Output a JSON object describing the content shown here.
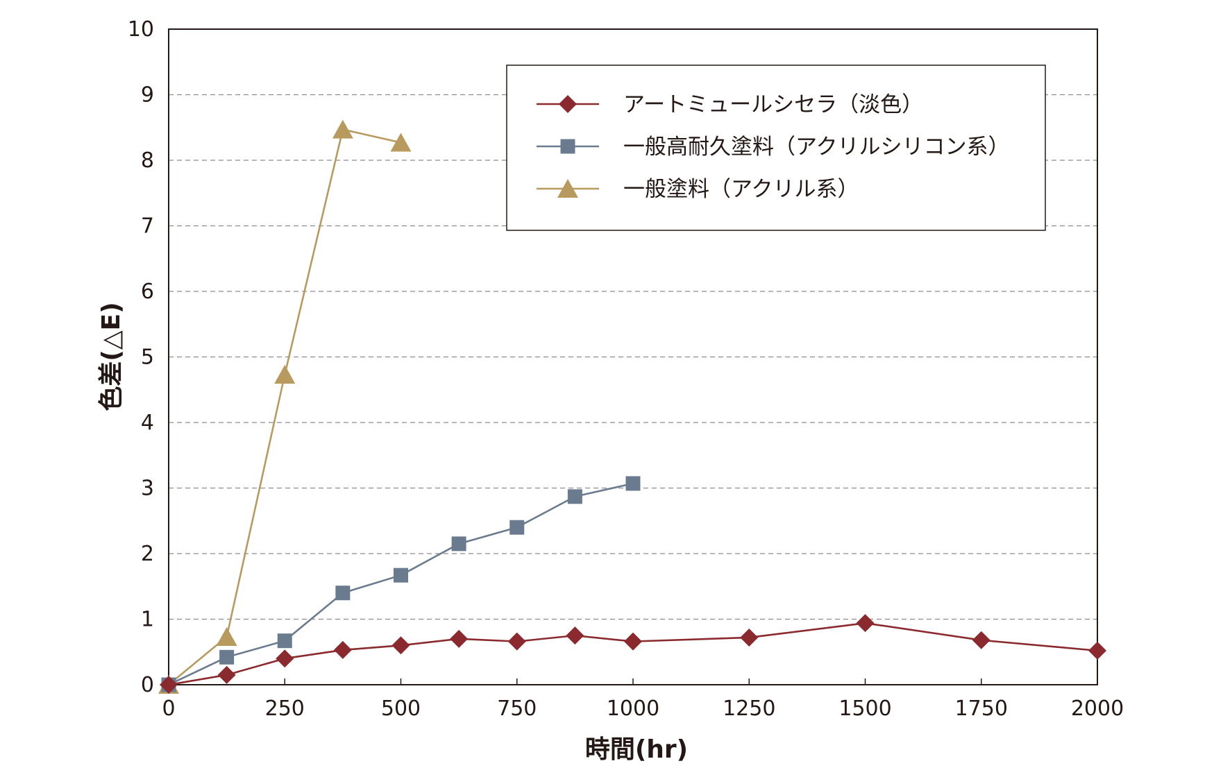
{
  "chart_data": {
    "type": "line",
    "title": "",
    "xlabel": "時間(hr)",
    "ylabel": "色差(△E)",
    "xlim": [
      0,
      2000
    ],
    "ylim": [
      0,
      10
    ],
    "x_ticks": [
      "0",
      "250",
      "500",
      "750",
      "1000",
      "1250",
      "1500",
      "1750",
      "2000"
    ],
    "y_ticks": [
      "0",
      "1",
      "2",
      "3",
      "4",
      "5",
      "6",
      "7",
      "8",
      "9",
      "10"
    ],
    "grid": "horizontal dashed",
    "legend_position": "top-right",
    "series": [
      {
        "name": "アートミュールシセラ（淡色）",
        "marker": "diamond",
        "color": "#8b2a2e",
        "x": [
          0,
          125,
          250,
          375,
          500,
          625,
          750,
          875,
          1000,
          1250,
          1500,
          1750,
          2000
        ],
        "y": [
          0,
          0.15,
          0.4,
          0.53,
          0.6,
          0.7,
          0.66,
          0.75,
          0.66,
          0.72,
          0.94,
          0.68,
          0.52
        ]
      },
      {
        "name": "一般高耐久塗料（アクリルシリコン系）",
        "marker": "square",
        "color": "#6b7b8f",
        "x": [
          0,
          125,
          250,
          375,
          500,
          625,
          750,
          875,
          1000
        ],
        "y": [
          0,
          0.42,
          0.67,
          1.4,
          1.67,
          2.15,
          2.4,
          2.87,
          3.07
        ]
      },
      {
        "name": "一般塗料（アクリル系）",
        "marker": "triangle",
        "color": "#b89a5f",
        "x": [
          0,
          125,
          250,
          375,
          500
        ],
        "y": [
          0,
          0.73,
          4.73,
          8.47,
          8.27
        ]
      }
    ]
  }
}
